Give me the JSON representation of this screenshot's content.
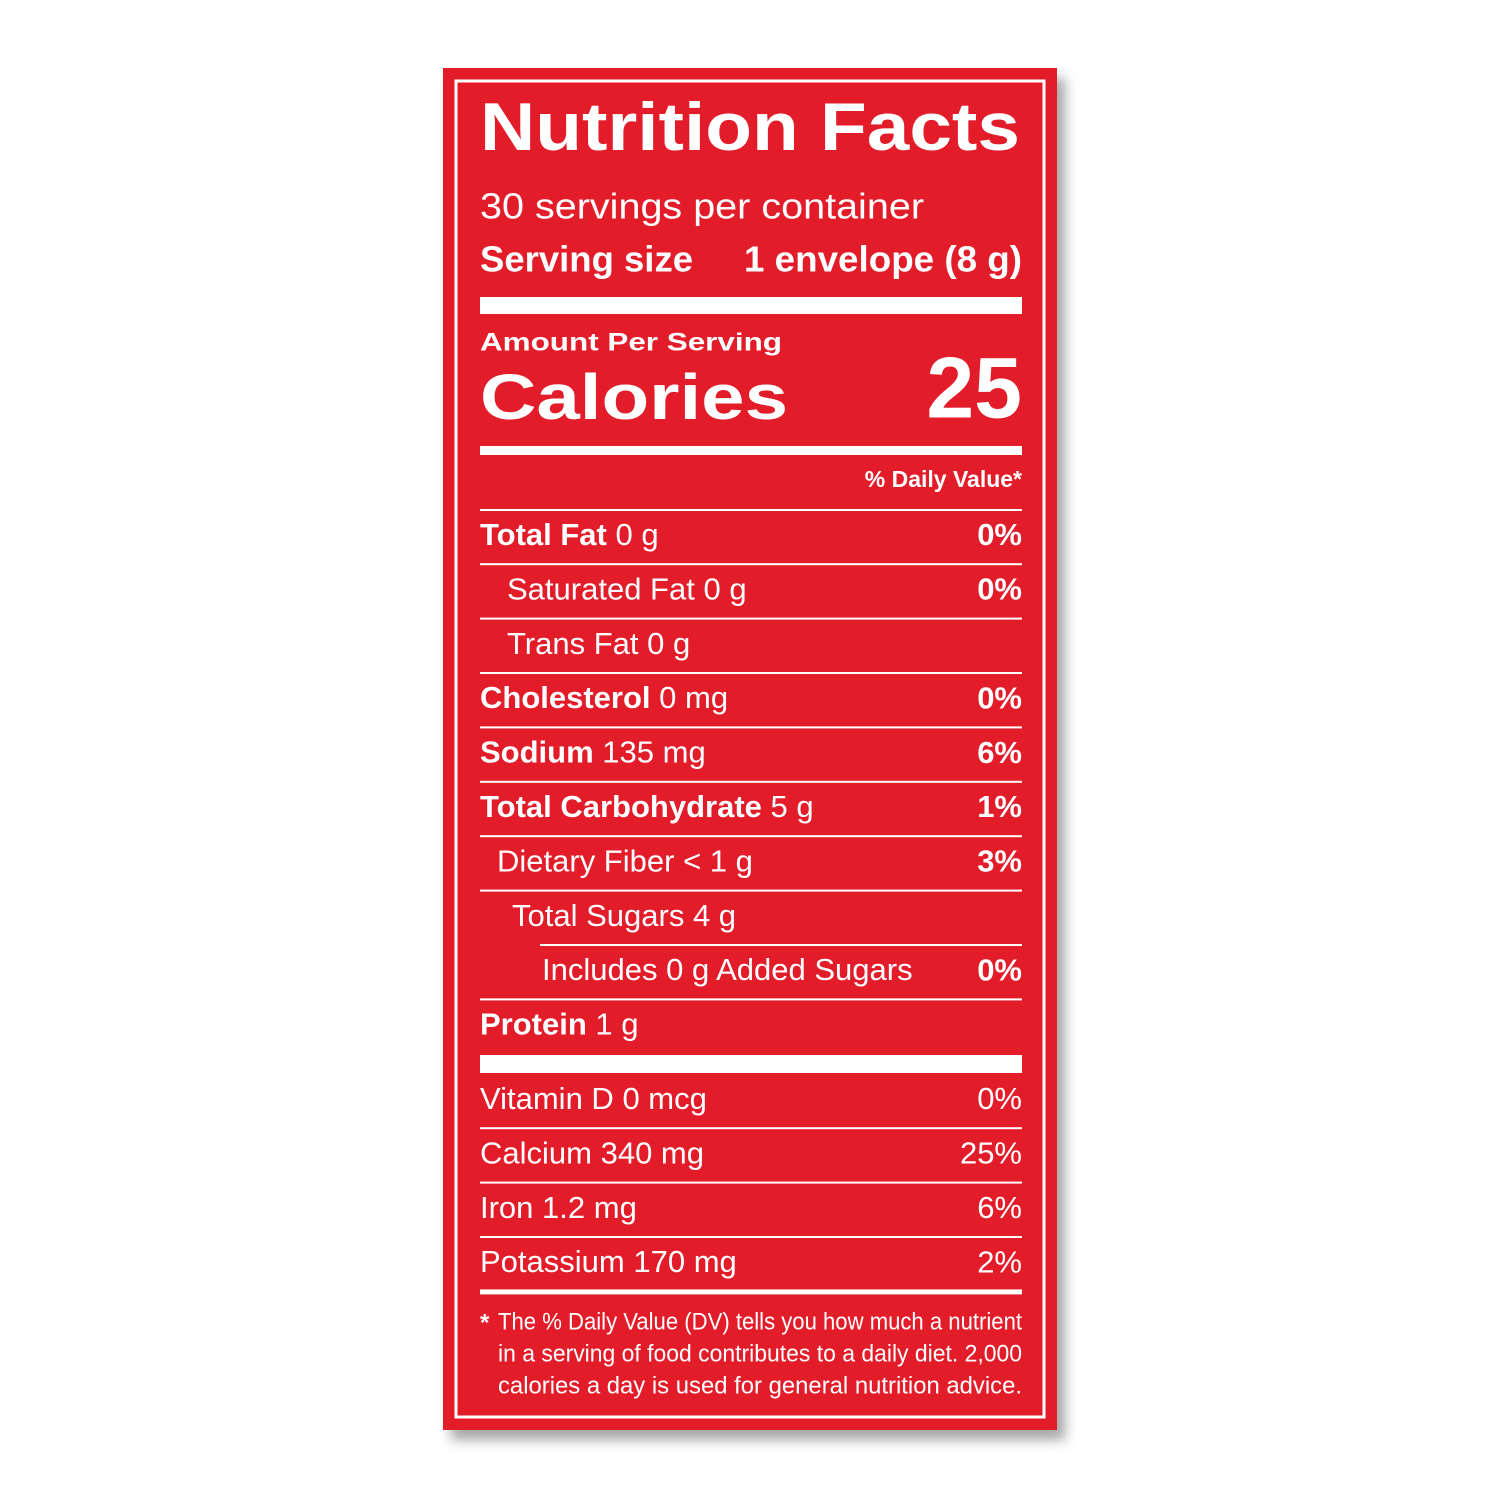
{
  "title": "Nutrition Facts",
  "servings": "30 servings per container",
  "serving_size": {
    "label": "Serving size",
    "value": "1 envelope (8 g)"
  },
  "amount_per_serving": "Amount Per Serving",
  "calories": {
    "label": "Calories",
    "value": 25
  },
  "daily_value_header": "% Daily Value*",
  "nutrients": [
    {
      "name": "Total Fat",
      "amount": "0 g",
      "dv": "0%"
    },
    {
      "name": "Saturated Fat",
      "amount": "0 g",
      "dv": "0%"
    },
    {
      "name": "Trans Fat",
      "amount": "0 g"
    },
    {
      "name": "Cholesterol",
      "amount": "0 mg",
      "dv": "0%"
    },
    {
      "name": "Sodium",
      "amount": "135 mg",
      "dv": "6%"
    },
    {
      "name": "Total Carbohydrate",
      "amount": "5 g",
      "dv": "1%"
    },
    {
      "name": "Dietary Fiber",
      "amount": "< 1 g",
      "dv": "3%"
    },
    {
      "name": "Total Sugars",
      "amount": "4 g"
    },
    {
      "name": "Includes",
      "amount": "0 g Added Sugars",
      "dv": "0%"
    },
    {
      "name": "Protein",
      "amount": "1 g"
    }
  ],
  "vitamins": [
    {
      "name": "Vitamin D",
      "amount": "0 mcg",
      "dv": "0%"
    },
    {
      "name": "Calcium",
      "amount": "340 mg",
      "dv": "25%"
    },
    {
      "name": "Iron",
      "amount": "1.2 mg",
      "dv": "6%"
    },
    {
      "name": "Potassium",
      "amount": "170 mg",
      "dv": "2%"
    }
  ],
  "footnote": {
    "marker": "*",
    "lines": [
      "The % Daily Value (DV) tells you how much a nutrient",
      "in a serving of food contributes to a daily diet. 2,000",
      "calories a day is used for general nutrition advice."
    ]
  }
}
